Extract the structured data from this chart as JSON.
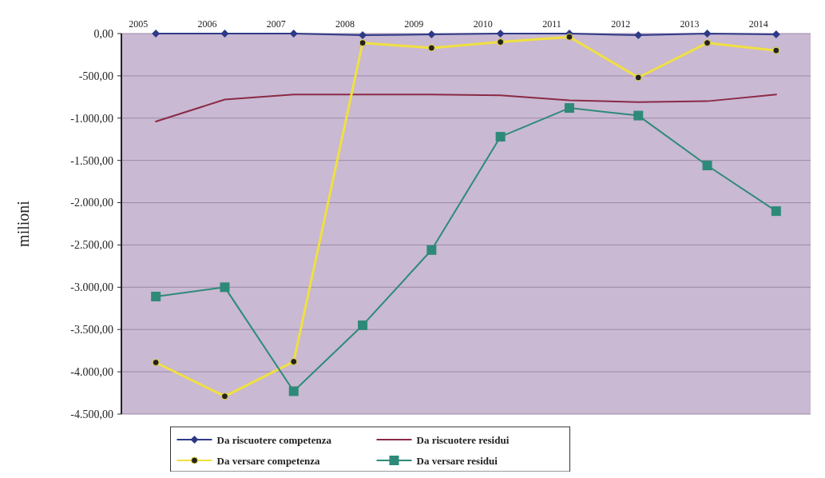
{
  "chart_data": {
    "type": "line",
    "ylabel": "milioni",
    "categories": [
      "2005",
      "2006",
      "2007",
      "2008",
      "2009",
      "2010",
      "2011",
      "2012",
      "2013",
      "2014"
    ],
    "ylim": [
      -4500,
      0
    ],
    "yticks": [
      {
        "value": 0,
        "label": "0,00"
      },
      {
        "value": -500,
        "label": "-500,00"
      },
      {
        "value": -1000,
        "label": "-1.000,00"
      },
      {
        "value": -1500,
        "label": "-1.500,00"
      },
      {
        "value": -2000,
        "label": "-2.000,00"
      },
      {
        "value": -2500,
        "label": "-2.500,00"
      },
      {
        "value": -3000,
        "label": "-3.000,00"
      },
      {
        "value": -3500,
        "label": "-3.500,00"
      },
      {
        "value": -4000,
        "label": "-4.000,00"
      },
      {
        "value": -4500,
        "label": "-4.500,00"
      }
    ],
    "grid": "y",
    "legend": "bottom",
    "series": [
      {
        "name": "Da riscuotere competenza",
        "color": "#2e3a87",
        "marker": "diamond",
        "values": [
          0,
          0,
          0,
          -20,
          -10,
          0,
          0,
          -20,
          0,
          -10
        ]
      },
      {
        "name": "Da riscuotere residui",
        "color": "#8b2a45",
        "marker": "none",
        "values": [
          -1040,
          -780,
          -720,
          -720,
          -720,
          -730,
          -790,
          -810,
          -800,
          -720
        ]
      },
      {
        "name": "Da versare competenza",
        "color": "#f0e040",
        "marker": "circle",
        "values": [
          -3890,
          -4290,
          -3880,
          -110,
          -170,
          -100,
          -40,
          -520,
          -110,
          -200
        ]
      },
      {
        "name": "Da versare residui",
        "color": "#2e8a78",
        "marker": "square",
        "values": [
          -3110,
          -3000,
          -4230,
          -3450,
          -2560,
          -1220,
          -880,
          -970,
          -1560,
          -2100
        ]
      }
    ]
  }
}
